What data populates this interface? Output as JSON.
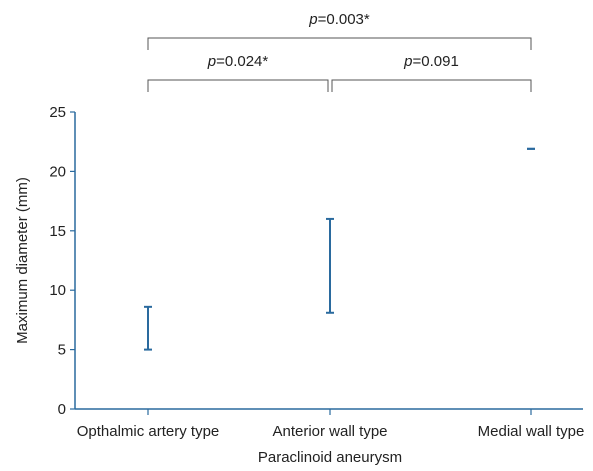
{
  "chart_data": {
    "type": "range",
    "xlabel": "Paraclinoid aneurysm",
    "ylabel": "Maximum diameter (mm)",
    "ylim": [
      0,
      25
    ],
    "yticks": [
      0,
      5,
      10,
      15,
      20,
      25
    ],
    "categories": [
      "Opthalmic artery type",
      "Anterior wall type",
      "Medial wall type"
    ],
    "ranges": [
      {
        "category": "Opthalmic artery type",
        "low": 5.0,
        "high": 8.6
      },
      {
        "category": "Anterior wall type",
        "low": 8.1,
        "high": 16.0
      },
      {
        "category": "Medial wall type",
        "low": 21.9,
        "high": 21.9
      }
    ],
    "comparisons": [
      {
        "from": 0,
        "to": 2,
        "label_prefix": "p",
        "label_value": "=0.003*"
      },
      {
        "from": 0,
        "to": 1,
        "label_prefix": "p",
        "label_value": "=0.024*"
      },
      {
        "from": 1,
        "to": 2,
        "label_prefix": "p",
        "label_value": "=0.091"
      }
    ],
    "colors": {
      "range": "#2a6a9e",
      "axis": "#2a6a9e",
      "bracket": "#555555"
    }
  }
}
